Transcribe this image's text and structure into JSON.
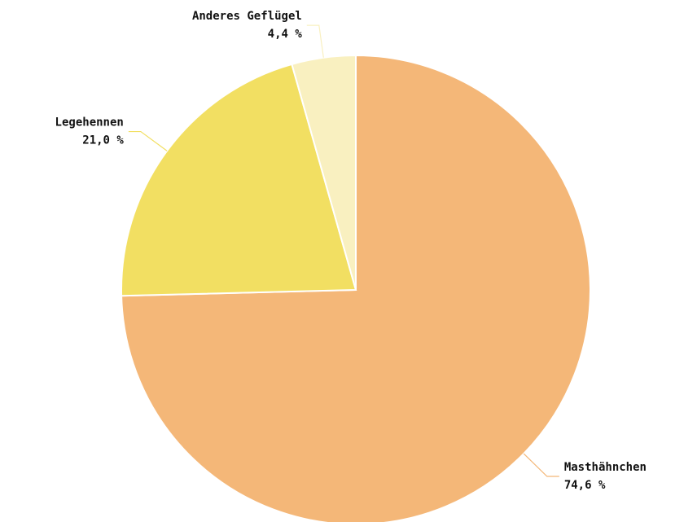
{
  "chart_data": {
    "type": "pie",
    "categories": [
      "Masthähnchen",
      "Legehennen",
      "Anderes Geflügel"
    ],
    "values": [
      74.6,
      21.0,
      4.4
    ],
    "value_labels": [
      "74,6 %",
      "21,0 %",
      "4,4 %"
    ],
    "colors": [
      "#f4b778",
      "#f2df62",
      "#f9f0c0"
    ]
  }
}
